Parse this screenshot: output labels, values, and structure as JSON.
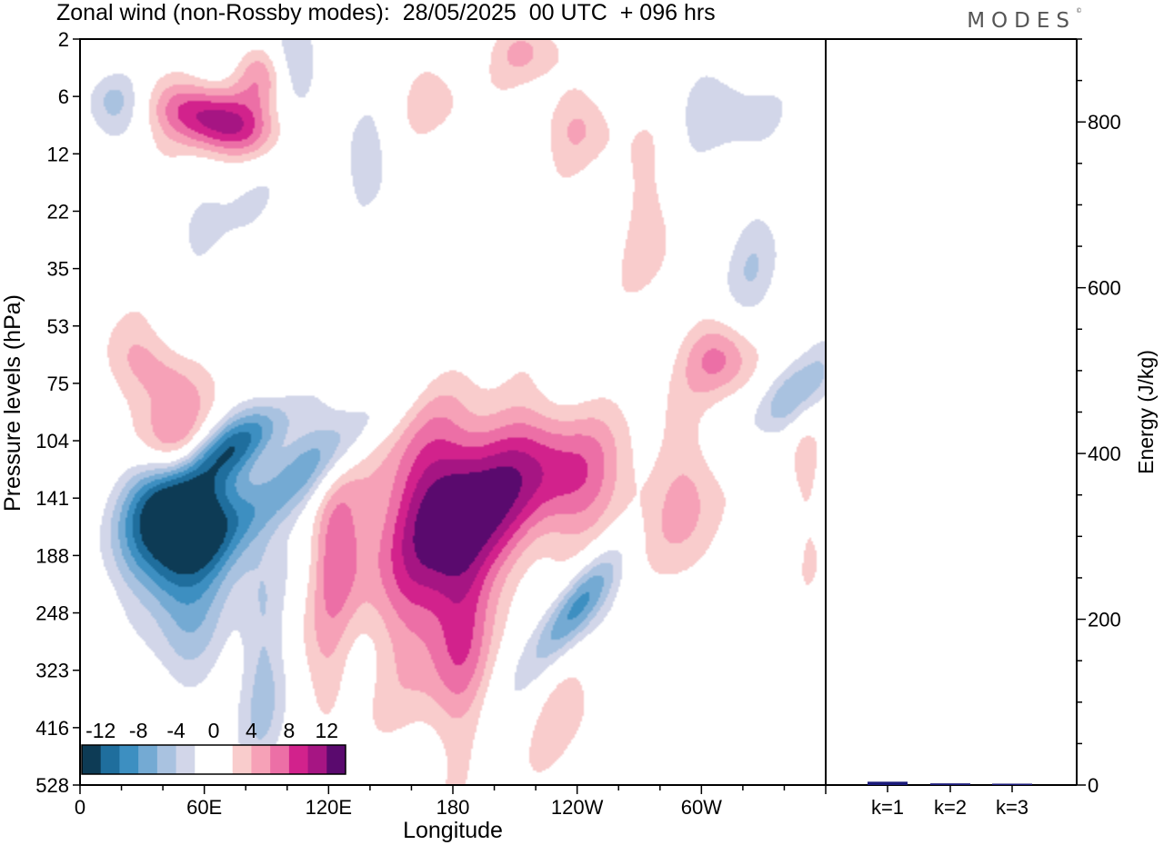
{
  "header": {
    "title": "Zonal wind (non-Rossby modes):  28/05/2025  00 UTC  + 096 hrs",
    "brand": "MODES",
    "brand_mark": "©"
  },
  "colors": {
    "scale": [
      "#0d3b55",
      "#1f6e9d",
      "#3d8fc1",
      "#74aad3",
      "#a9c2e0",
      "#d2d6e9",
      "#ffffff",
      "#ffffff",
      "#f9cccc",
      "#f6a1b7",
      "#ec6fa6",
      "#d2228c",
      "#a61583",
      "#5a0a6e"
    ],
    "bars": "#1a1a7a"
  },
  "chart_data": [
    {
      "type": "heatmap",
      "title": "Zonal wind (non-Rossby modes):  28/05/2025  00 UTC  + 096 hrs",
      "xlabel": "Longitude",
      "ylabel": "Pressure levels (hPa)",
      "x_ticks": [
        "0",
        "60E",
        "120E",
        "180",
        "120W",
        "60W"
      ],
      "x_tick_degrees": [
        0,
        60,
        120,
        180,
        240,
        300
      ],
      "xlim": [
        0,
        360
      ],
      "y_ticks": [
        "2",
        "6",
        "12",
        "22",
        "35",
        "53",
        "75",
        "104",
        "141",
        "188",
        "248",
        "323",
        "416",
        "528"
      ],
      "colorbar": {
        "labels": [
          "-12",
          "-8",
          "-4",
          "0",
          "4",
          "8",
          "12"
        ],
        "levels": [
          -14,
          -12,
          -10,
          -8,
          -6,
          -4,
          -2,
          0,
          2,
          4,
          6,
          8,
          10,
          12,
          14
        ]
      },
      "features": [
        {
          "lon": 50,
          "level": 8.4,
          "value": -16,
          "slx": 18,
          "sly": 0.75,
          "rot": 38
        },
        {
          "lon": 73,
          "level": 7.1,
          "value": -10,
          "slx": 8,
          "sly": 0.9,
          "rot": 60
        },
        {
          "lon": 45,
          "level": 9.7,
          "value": -5,
          "slx": 15,
          "sly": 1.3,
          "rot": -25
        },
        {
          "lon": 88,
          "level": 10.8,
          "value": -4,
          "slx": 8,
          "sly": 1.6,
          "rot": 0
        },
        {
          "lon": 110,
          "level": 7.5,
          "value": -8,
          "slx": 9,
          "sly": 1.6,
          "rot": 55
        },
        {
          "lon": 123,
          "level": 8.9,
          "value": 5,
          "slx": 8,
          "sly": 0.9,
          "rot": 0
        },
        {
          "lon": 140,
          "level": 8.5,
          "value": 4,
          "slx": 18,
          "sly": 1.5,
          "rot": 0
        },
        {
          "lon": 165,
          "level": 9.0,
          "value": 6,
          "slx": 14,
          "sly": 2.0,
          "rot": 0
        },
        {
          "lon": 188,
          "level": 8.2,
          "value": 10,
          "slx": 18,
          "sly": 1.0,
          "rot": 0
        },
        {
          "lon": 210,
          "level": 7.7,
          "value": 4,
          "slx": 18,
          "sly": 0.9,
          "rot": 0
        },
        {
          "lon": 238,
          "level": 7.6,
          "value": 7,
          "slx": 24,
          "sly": 0.8,
          "rot": 25
        },
        {
          "lon": 184,
          "level": 10.2,
          "value": 6,
          "slx": 10,
          "sly": 1.4,
          "rot": 0
        },
        {
          "lon": 240,
          "level": 9.9,
          "value": -10,
          "slx": 7,
          "sly": 0.9,
          "rot": 40
        },
        {
          "lon": 295,
          "level": 8.2,
          "value": 4,
          "slx": 12,
          "sly": 1.3,
          "rot": 0
        },
        {
          "lon": 310,
          "level": 5.6,
          "value": 6,
          "slx": 12,
          "sly": 0.5,
          "rot": 0
        },
        {
          "lon": 345,
          "level": 6.2,
          "value": -6,
          "slx": 8,
          "sly": 0.7,
          "rot": 50
        },
        {
          "lon": 38,
          "level": 5.8,
          "value": 6,
          "slx": 16,
          "sly": 0.5,
          "rot": 30
        },
        {
          "lon": 45,
          "level": 7.1,
          "value": 7,
          "slx": 14,
          "sly": 0.5,
          "rot": 35
        },
        {
          "lon": 65,
          "level": 1.4,
          "value": 11,
          "slx": 22,
          "sly": 0.4,
          "rot": 15
        },
        {
          "lon": 90,
          "level": 0.6,
          "value": 7,
          "slx": 10,
          "sly": 0.4,
          "rot": 10
        },
        {
          "lon": 100,
          "level": 0.5,
          "value": -6,
          "slx": 10,
          "sly": 0.5,
          "rot": 0
        },
        {
          "lon": 15,
          "level": 1.0,
          "value": -5,
          "slx": 10,
          "sly": 0.4,
          "rot": 0
        },
        {
          "lon": 70,
          "level": 3.6,
          "value": -3,
          "slx": 12,
          "sly": 1.3,
          "rot": 30
        },
        {
          "lon": 140,
          "level": 2.2,
          "value": -3,
          "slx": 12,
          "sly": 0.6,
          "rot": 0
        },
        {
          "lon": 240,
          "level": 1.5,
          "value": 4,
          "slx": 14,
          "sly": 0.5,
          "rot": 0
        },
        {
          "lon": 275,
          "level": 3.2,
          "value": 3,
          "slx": 10,
          "sly": 1.0,
          "rot": 0
        },
        {
          "lon": 310,
          "level": 1.2,
          "value": -4,
          "slx": 16,
          "sly": 0.5,
          "rot": 0
        },
        {
          "lon": 325,
          "level": 4.0,
          "value": -3,
          "slx": 10,
          "sly": 0.8,
          "rot": 0
        },
        {
          "lon": 215,
          "level": 0.2,
          "value": 4,
          "slx": 12,
          "sly": 0.4,
          "rot": 0
        },
        {
          "lon": 170,
          "level": 1.0,
          "value": 3,
          "slx": 12,
          "sly": 0.5,
          "rot": 0
        },
        {
          "lon": 120,
          "level": 11.0,
          "value": 3,
          "slx": 8,
          "sly": 0.8,
          "rot": 0
        },
        {
          "lon": 235,
          "level": 11.6,
          "value": 3,
          "slx": 10,
          "sly": 0.9,
          "rot": 20
        },
        {
          "lon": 350,
          "level": 7.6,
          "value": 3,
          "slx": 6,
          "sly": 1.2,
          "rot": 0
        }
      ]
    },
    {
      "type": "bar",
      "ylabel": "Energy (J/kg)",
      "categories": [
        "k=1",
        "k=2",
        "k=3"
      ],
      "values": [
        4,
        2,
        1
      ],
      "ylim": [
        0,
        900
      ],
      "y_ticks": [
        0,
        200,
        400,
        600,
        800
      ]
    }
  ]
}
